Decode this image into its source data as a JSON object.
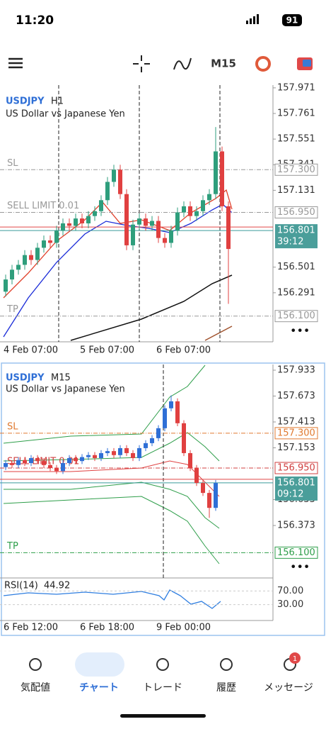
{
  "status_bar": {
    "time": "11:20",
    "battery": "91"
  },
  "toolbar": {
    "timeframe": "M15"
  },
  "charts": [
    {
      "symbol": "USDJPY",
      "timeframe": "H1",
      "description": "US Dollar vs Japanese Yen",
      "yticks": [
        157.971,
        157.761,
        157.551,
        157.341,
        157.131,
        156.501,
        156.291
      ],
      "levels": {
        "sl": {
          "name": "SL",
          "price": {
            "value": 157.3,
            "label": "157.300"
          }
        },
        "sell_limit": {
          "name": "SELL LIMIT 0.01",
          "price": {
            "value": 156.95,
            "label": "156.950"
          }
        },
        "tp": {
          "name": "TP",
          "price": {
            "value": 156.1,
            "label": "156.100"
          }
        },
        "current": {
          "price": 156.801,
          "countdown": "39:12"
        }
      },
      "xlabels": [
        "4 Feb 07:00",
        "5 Feb 07:00",
        "6 Feb 07:00"
      ],
      "candles": [
        [
          156.3,
          156.44,
          156.26,
          156.4
        ],
        [
          156.4,
          156.52,
          156.36,
          156.48
        ],
        [
          156.48,
          156.56,
          156.44,
          156.52
        ],
        [
          156.52,
          156.64,
          156.48,
          156.6
        ],
        [
          156.6,
          156.64,
          156.52,
          156.56
        ],
        [
          156.56,
          156.7,
          156.52,
          156.66
        ],
        [
          156.66,
          156.76,
          156.62,
          156.72
        ],
        [
          156.72,
          156.76,
          156.66,
          156.7
        ],
        [
          156.7,
          156.84,
          156.66,
          156.8
        ],
        [
          156.8,
          156.9,
          156.76,
          156.86
        ],
        [
          156.86,
          156.9,
          156.8,
          156.84
        ],
        [
          156.84,
          156.94,
          156.8,
          156.9
        ],
        [
          156.9,
          156.94,
          156.82,
          156.86
        ],
        [
          156.86,
          156.96,
          156.82,
          156.92
        ],
        [
          156.92,
          157.0,
          156.88,
          156.96
        ],
        [
          156.96,
          157.09,
          156.92,
          157.05
        ],
        [
          157.05,
          157.24,
          157.01,
          157.2
        ],
        [
          157.2,
          157.34,
          157.16,
          157.3
        ],
        [
          157.3,
          157.34,
          157.06,
          157.1
        ],
        [
          157.1,
          157.14,
          156.64,
          156.68
        ],
        [
          156.68,
          156.89,
          156.64,
          156.85
        ],
        [
          156.85,
          156.94,
          156.81,
          156.9
        ],
        [
          156.9,
          156.94,
          156.8,
          156.84
        ],
        [
          156.84,
          156.92,
          156.8,
          156.88
        ],
        [
          156.88,
          156.92,
          156.7,
          156.74
        ],
        [
          156.74,
          156.78,
          156.66,
          156.7
        ],
        [
          156.7,
          156.84,
          156.66,
          156.8
        ],
        [
          156.8,
          156.99,
          156.76,
          156.95
        ],
        [
          156.95,
          157.04,
          156.91,
          157.0
        ],
        [
          157.0,
          157.04,
          156.88,
          156.92
        ],
        [
          156.92,
          157.0,
          156.88,
          156.96
        ],
        [
          156.96,
          157.09,
          156.92,
          157.05
        ],
        [
          157.05,
          157.14,
          157.01,
          157.1
        ],
        [
          157.1,
          157.65,
          157.06,
          157.45
        ],
        [
          157.45,
          157.49,
          156.96,
          157.0
        ],
        [
          157.0,
          157.04,
          156.2,
          156.65
        ]
      ]
    },
    {
      "symbol": "USDJPY",
      "timeframe": "M15",
      "description": "US Dollar vs Japanese Yen",
      "yticks": [
        157.933,
        157.673,
        157.413,
        157.153,
        156.633,
        156.373
      ],
      "levels": {
        "sl": {
          "name": "SL",
          "price": {
            "value": 157.3,
            "label": "157.300"
          }
        },
        "sell_limit": {
          "name": "SELL LIMIT 0.01",
          "price": {
            "value": 156.95,
            "label": "156.950"
          }
        },
        "tp": {
          "name": "TP",
          "price": {
            "value": 156.1,
            "label": "156.100"
          }
        },
        "current": {
          "price": 156.801,
          "countdown": "09:12"
        }
      },
      "xlabels": [
        "6 Feb 12:00",
        "6 Feb 18:00",
        "9 Feb 00:00"
      ],
      "rsi": {
        "name": "RSI(14)",
        "value": 44.92,
        "levels": [
          {
            "value": 70,
            "label": "70.00"
          },
          {
            "value": 30,
            "label": "30.00"
          }
        ]
      },
      "candles": [
        [
          156.96,
          157.03,
          156.93,
          157.0
        ],
        [
          157.0,
          157.03,
          156.95,
          156.98
        ],
        [
          156.98,
          157.06,
          156.95,
          157.03
        ],
        [
          157.03,
          157.06,
          156.97,
          157.0
        ],
        [
          157.0,
          157.08,
          156.97,
          157.05
        ],
        [
          157.05,
          157.08,
          156.99,
          157.02
        ],
        [
          157.02,
          157.05,
          156.95,
          156.98
        ],
        [
          156.98,
          157.01,
          156.92,
          156.95
        ],
        [
          156.95,
          156.98,
          156.89,
          156.92
        ],
        [
          156.92,
          157.03,
          156.89,
          157.0
        ],
        [
          157.0,
          157.08,
          156.97,
          157.05
        ],
        [
          157.05,
          157.08,
          156.99,
          157.02
        ],
        [
          157.02,
          157.09,
          156.99,
          157.06
        ],
        [
          157.06,
          157.11,
          157.03,
          157.08
        ],
        [
          157.08,
          157.11,
          157.02,
          157.05
        ],
        [
          157.05,
          157.13,
          157.02,
          157.1
        ],
        [
          157.1,
          157.15,
          157.07,
          157.12
        ],
        [
          157.12,
          157.15,
          157.05,
          157.08
        ],
        [
          157.08,
          157.18,
          157.05,
          157.15
        ],
        [
          157.15,
          157.18,
          157.07,
          157.1
        ],
        [
          157.1,
          157.13,
          157.02,
          157.05
        ],
        [
          157.05,
          157.18,
          157.02,
          157.15
        ],
        [
          157.15,
          157.23,
          157.12,
          157.2
        ],
        [
          157.2,
          157.28,
          157.17,
          157.25
        ],
        [
          157.25,
          157.38,
          157.22,
          157.35
        ],
        [
          157.35,
          157.58,
          157.32,
          157.55
        ],
        [
          157.55,
          157.68,
          157.52,
          157.62
        ],
        [
          157.62,
          157.65,
          157.37,
          157.4
        ],
        [
          157.4,
          157.43,
          157.07,
          157.1
        ],
        [
          157.1,
          157.13,
          156.92,
          156.95
        ],
        [
          156.95,
          156.98,
          156.77,
          156.8
        ],
        [
          156.8,
          156.83,
          156.67,
          156.7
        ],
        [
          156.7,
          156.73,
          156.45,
          156.55
        ],
        [
          156.55,
          156.83,
          156.52,
          156.8
        ]
      ]
    }
  ],
  "nav": {
    "items": [
      "気配値",
      "チャート",
      "トレード",
      "履歴",
      "メッセージ"
    ],
    "badge": "1"
  }
}
